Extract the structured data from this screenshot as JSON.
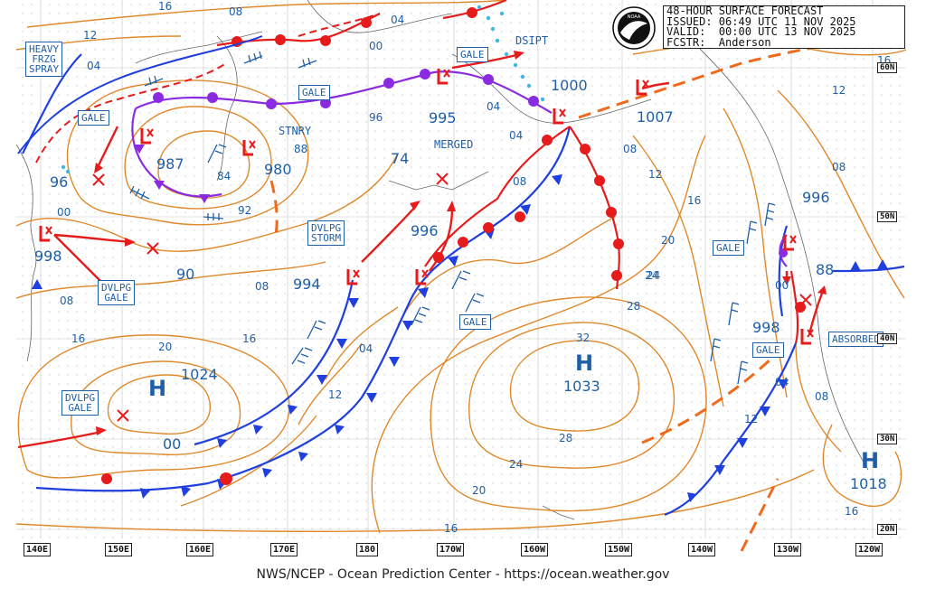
{
  "header": {
    "line1": "48-HOUR SURFACE FORECAST",
    "line2": "ISSUED: 06:49 UTC 11 NOV 2025",
    "line3": "VALID:  00:00 UTC 13 NOV 2025",
    "line4": "FCSTR:  Anderson"
  },
  "footer": "NWS/NCEP - Ocean Prediction Center - https://ocean.weather.gov",
  "logo_icon": "noaa-logo",
  "longitude_labels": [
    "140E",
    "150E",
    "160E",
    "170E",
    "180",
    "170W",
    "160W",
    "150W",
    "140W",
    "130W",
    "120W"
  ],
  "latitude_labels": [
    "60N",
    "50N",
    "40N",
    "30N",
    "20N"
  ],
  "boxed_labels": {
    "heavy_spray": "HEAVY\nFRZG\nSPRAY",
    "gale_w": "GALE",
    "gale_n": "GALE",
    "gale_bering": "GALE",
    "dvlpg_storm": "DVLPG\nSTORM",
    "dvlpg_gale_1": "DVLPG\nGALE",
    "dvlpg_gale_2": "DVLPG\nGALE",
    "gale_c": "GALE",
    "gale_e": "GALE",
    "gale_se": "GALE",
    "absorbed": "ABSORBED",
    "p_96": "96",
    "p_998w": "998",
    "p_90": "90",
    "p_987": "987",
    "p_980": "980",
    "p_994": "994",
    "p_74": "74",
    "p_995": "995",
    "p_996c": "996",
    "p_1000": "1000",
    "p_1007": "1007",
    "p_996e": "996",
    "p_88": "88",
    "p_998e": "998",
    "p_1024": "1024",
    "p_1033": "1033",
    "p_1018": "1018",
    "p_00": "00"
  },
  "plain_labels": {
    "dsipt": "DSIPT",
    "stnry": "STNRY",
    "merged": "MERGED"
  },
  "isobar_labels": [
    "16",
    "08",
    "04",
    "12",
    "00",
    "04",
    "96",
    "88",
    "84",
    "92",
    "00",
    "08",
    "16",
    "20",
    "16",
    "24",
    "28",
    "32",
    "28",
    "24",
    "20",
    "16",
    "12",
    "04",
    "08",
    "04",
    "08",
    "12",
    "16",
    "20",
    "24",
    "12",
    "08",
    "04",
    "08",
    "12",
    "16",
    "08",
    "04",
    "00",
    "16"
  ],
  "highs": [
    "H",
    "H",
    "H"
  ],
  "colors": {
    "isobar": "#e0892b",
    "label": "#1f5fa8",
    "cold_front": "#1f3fdf",
    "warm_front": "#e61b1b",
    "occluded": "#8a2be2",
    "trough": "#f06a1d",
    "low": "#e61b1b",
    "ice": "#3fb7e6"
  }
}
